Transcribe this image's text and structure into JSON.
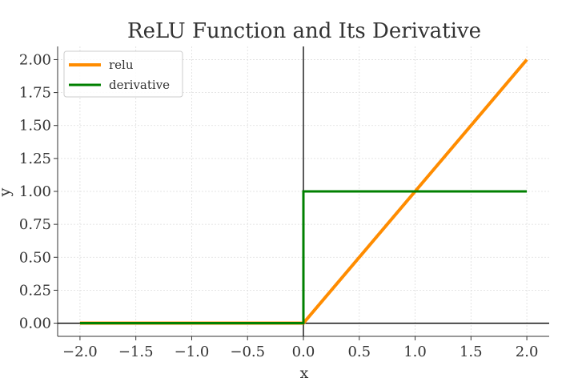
{
  "chart_data": {
    "type": "line",
    "title": "ReLU Function and Its Derivative",
    "xlabel": "x",
    "ylabel": "y",
    "xlim": [
      -2.2,
      2.2
    ],
    "ylim": [
      -0.1,
      2.1
    ],
    "xticks": [
      -2.0,
      -1.5,
      -1.0,
      -0.5,
      0.0,
      0.5,
      1.0,
      1.5,
      2.0
    ],
    "xtick_labels": [
      "−2.0",
      "−1.5",
      "−1.0",
      "−0.5",
      "0.0",
      "0.5",
      "1.0",
      "1.5",
      "2.0"
    ],
    "yticks": [
      0.0,
      0.25,
      0.5,
      0.75,
      1.0,
      1.25,
      1.5,
      1.75,
      2.0
    ],
    "ytick_labels": [
      "0.00",
      "0.25",
      "0.50",
      "0.75",
      "1.00",
      "1.25",
      "1.50",
      "1.75",
      "2.00"
    ],
    "grid": true,
    "legend_position": "top-left",
    "series": [
      {
        "name": "relu",
        "color": "#ff8c00",
        "x": [
          -2.0,
          0.0,
          2.0
        ],
        "y": [
          0.0,
          0.0,
          2.0
        ]
      },
      {
        "name": "derivative",
        "color": "#008000",
        "x": [
          -2.0,
          0.0,
          0.0,
          2.0
        ],
        "y": [
          0.0,
          0.0,
          1.0,
          1.0
        ]
      }
    ]
  }
}
